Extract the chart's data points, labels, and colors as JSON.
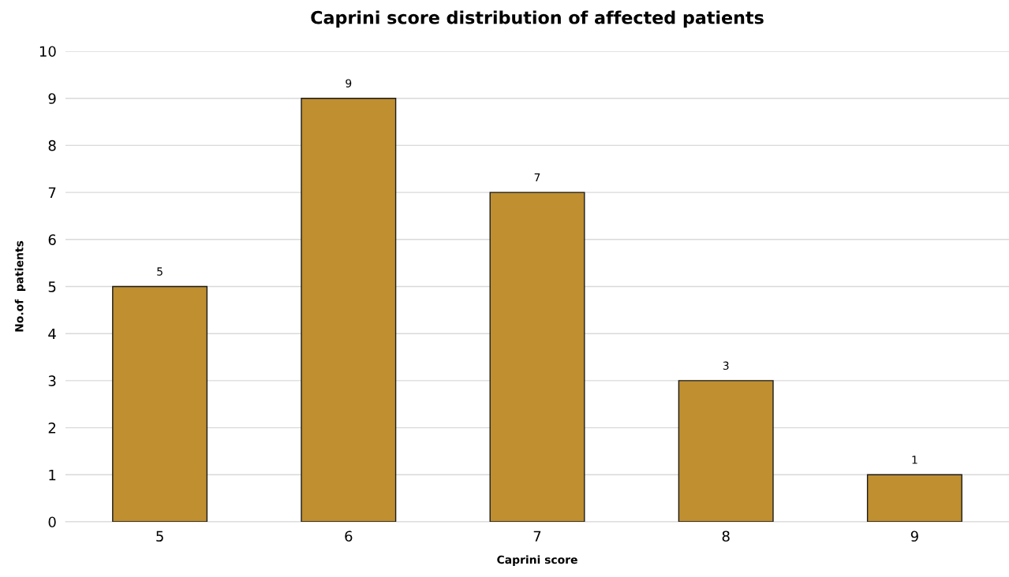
{
  "chart_data": {
    "type": "bar",
    "title": "Caprini score distribution of affected patients",
    "xlabel": "Caprini score",
    "ylabel": "No.of  patients",
    "categories": [
      "5",
      "6",
      "7",
      "8",
      "9"
    ],
    "values": [
      5,
      9,
      7,
      3,
      1
    ],
    "color": "#bf8f30",
    "ylim": [
      0,
      10
    ],
    "yticks": [
      0,
      1,
      2,
      3,
      4,
      5,
      6,
      7,
      8,
      9,
      10
    ],
    "grid": "y",
    "data_labels": true
  }
}
